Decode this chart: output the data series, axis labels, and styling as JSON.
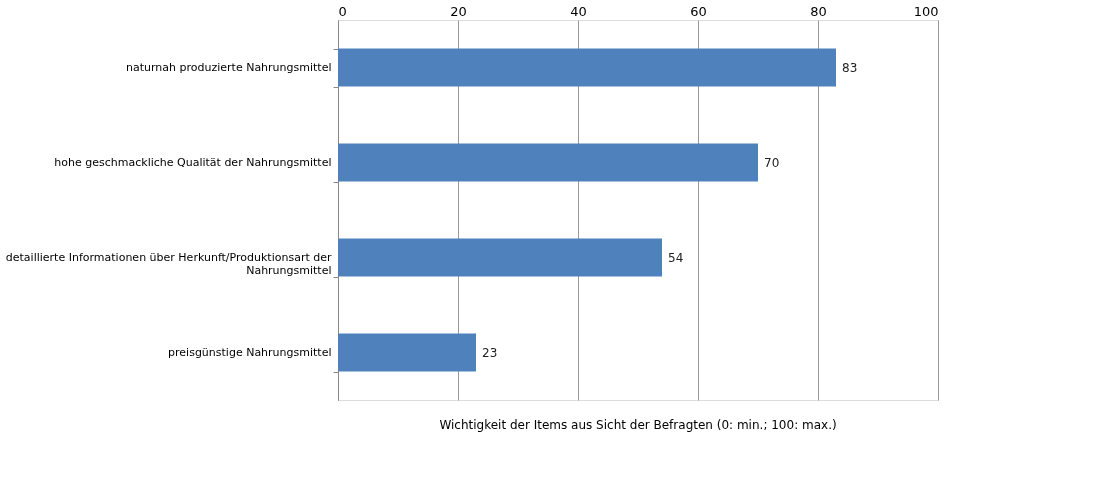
{
  "chart_data": {
    "type": "bar",
    "orientation": "horizontal",
    "categories": [
      "naturnah produzierte Nahrungsmittel",
      "hohe geschmackliche Qualität der Nahrungsmittel",
      "detaillierte Informationen über Herkunft/Produktionsart der Nahrungsmittel",
      "preisgünstige Nahrungsmittel"
    ],
    "values": [
      83,
      70,
      54,
      23
    ],
    "color": "#4f81bd",
    "xlim": [
      0,
      100
    ],
    "xticks": [
      0,
      20,
      40,
      60,
      80,
      100
    ],
    "grid": "x",
    "data_labels": true,
    "xlabel": "Wichtigkeit der Items aus Sicht der Befragten (0: min.; 100: max.)"
  }
}
